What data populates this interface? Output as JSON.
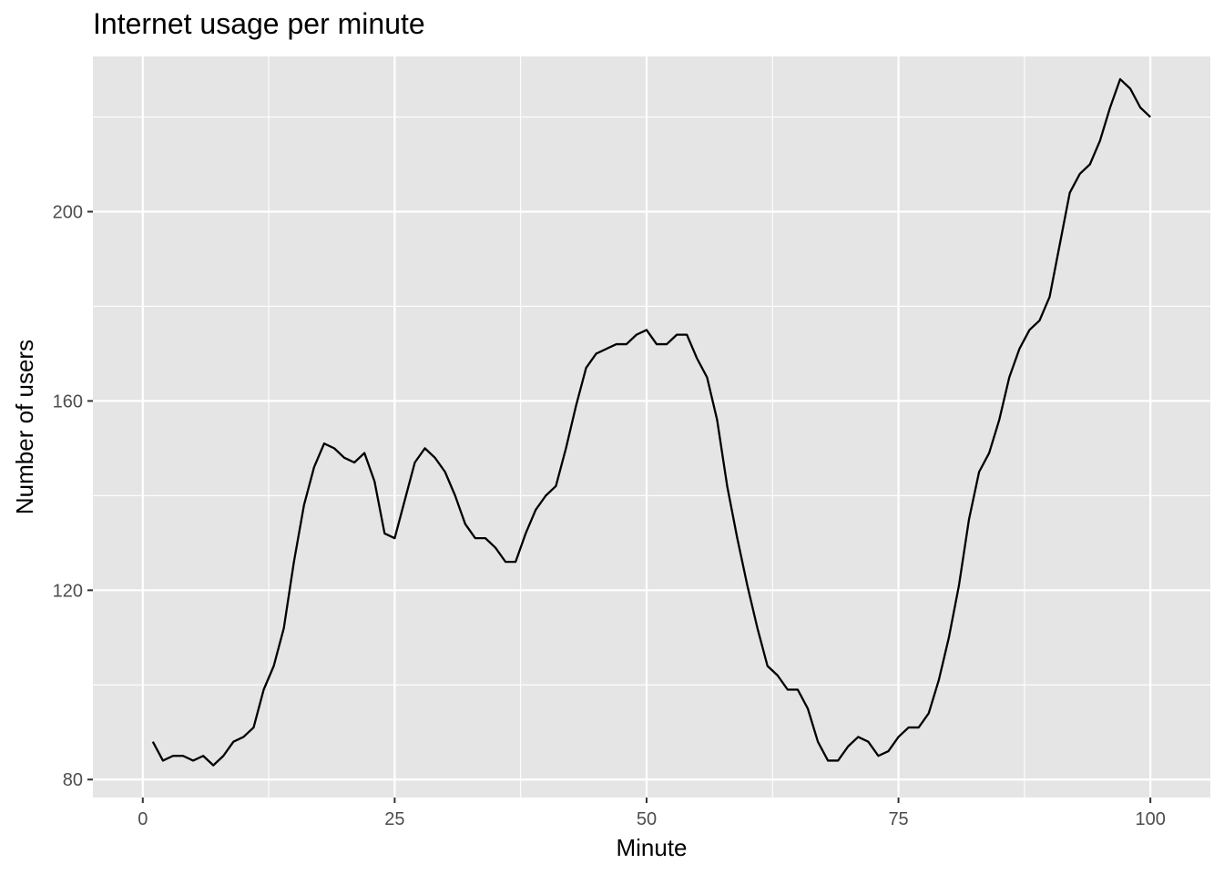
{
  "chart_data": {
    "type": "line",
    "title": "Internet usage per minute",
    "xlabel": "Minute",
    "ylabel": "Number of users",
    "xlim": [
      -4.95,
      105.95
    ],
    "ylim": [
      76.2,
      232.8
    ],
    "x_ticks": [
      0,
      25,
      50,
      75,
      100
    ],
    "x_tick_labels": [
      "0",
      "25",
      "50",
      "75",
      "100"
    ],
    "x_minor": [
      12.5,
      37.5,
      62.5,
      87.5
    ],
    "y_ticks": [
      80,
      120,
      160,
      200
    ],
    "y_tick_labels": [
      "80",
      "120",
      "160",
      "200"
    ],
    "y_minor": [
      100,
      140,
      180,
      220
    ],
    "grid": true,
    "line_color": "#000000",
    "panel_color": "#e5e5e5",
    "grid_color": "#ffffff",
    "series": [
      {
        "x": [
          1,
          2,
          3,
          4,
          5,
          6,
          7,
          8,
          9,
          10,
          11,
          12,
          13,
          14,
          15,
          16,
          17,
          18,
          19,
          20,
          21,
          22,
          23,
          24,
          25,
          26,
          27,
          28,
          29,
          30,
          31,
          32,
          33,
          34,
          35,
          36,
          37,
          38,
          39,
          40,
          41,
          42,
          43,
          44,
          45,
          46,
          47,
          48,
          49,
          50,
          51,
          52,
          53,
          54,
          55,
          56,
          57,
          58,
          59,
          60,
          61,
          62,
          63,
          64,
          65,
          66,
          67,
          68,
          69,
          70,
          71,
          72,
          73,
          74,
          75,
          76,
          77,
          78,
          79,
          80,
          81,
          82,
          83,
          84,
          85,
          86,
          87,
          88,
          89,
          90,
          91,
          92,
          93,
          94,
          95,
          96,
          97,
          98,
          99,
          100
        ],
        "values": [
          88,
          84,
          85,
          85,
          84,
          85,
          83,
          85,
          88,
          89,
          91,
          99,
          104,
          112,
          126,
          138,
          146,
          151,
          150,
          148,
          147,
          149,
          143,
          132,
          131,
          139,
          147,
          150,
          148,
          145,
          140,
          134,
          131,
          131,
          129,
          126,
          126,
          132,
          137,
          140,
          142,
          150,
          159,
          167,
          170,
          171,
          172,
          172,
          174,
          175,
          172,
          172,
          174,
          174,
          169,
          165,
          156,
          142,
          131,
          121,
          112,
          104,
          102,
          99,
          99,
          95,
          88,
          84,
          84,
          87,
          89,
          88,
          85,
          86,
          89,
          91,
          91,
          94,
          101,
          110,
          121,
          135,
          145,
          149,
          156,
          165,
          171,
          175,
          177,
          182,
          193,
          204,
          208,
          210,
          215,
          222,
          228,
          226,
          222,
          220
        ]
      }
    ]
  }
}
